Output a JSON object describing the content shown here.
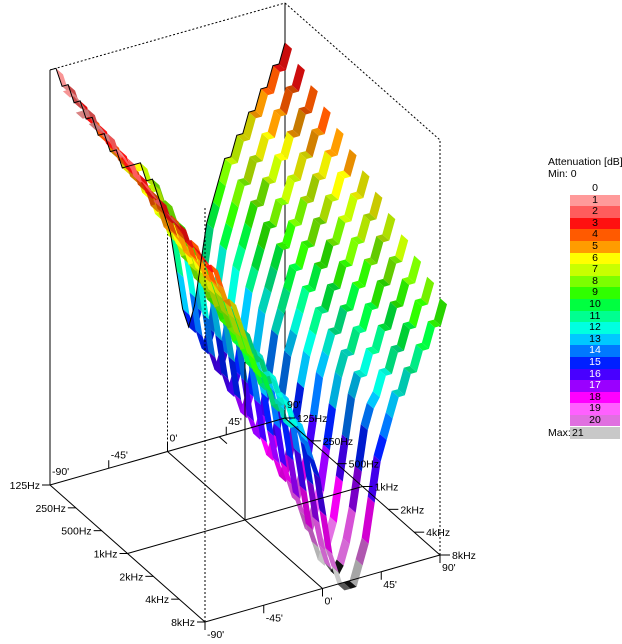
{
  "chart_data": {
    "type": "surface3d",
    "title": "",
    "freq_ticks": [
      "125Hz",
      "250Hz",
      "500Hz",
      "1kHz",
      "2kHz",
      "4kHz",
      "8kHz"
    ],
    "angle_ticks": [
      "-90'",
      "-45'",
      "0'",
      "45'",
      "90'"
    ],
    "angle_values": [
      -90,
      -45,
      0,
      45,
      90
    ],
    "legend": {
      "title": "Attenuation [dB]",
      "min_label": "Min:",
      "min_value": "0",
      "max_label": "Max:",
      "max_value": "21",
      "levels": [
        "0",
        "1",
        "2",
        "3",
        "4",
        "5",
        "6",
        "7",
        "8",
        "9",
        "10",
        "11",
        "12",
        "13",
        "14",
        "15",
        "16",
        "17",
        "18",
        "19",
        "20"
      ],
      "colors": [
        "#ffffff",
        "#ff9a9a",
        "#ff5c5c",
        "#ff1010",
        "#ff5a00",
        "#ff9c00",
        "#ffff00",
        "#c8ff00",
        "#7cff00",
        "#30ff00",
        "#00ff40",
        "#00ff90",
        "#00ffe0",
        "#00c8ff",
        "#0078ff",
        "#0020ff",
        "#4800ff",
        "#9a00ff",
        "#ff00ff",
        "#ff60ff",
        "#e070e0"
      ],
      "over_color": "#c8c8c8"
    },
    "surface_rows": [
      {
        "freq": "125Hz",
        "values": [
          0,
          0,
          1,
          1,
          2,
          2,
          3,
          3,
          4,
          4,
          5,
          5,
          6,
          6,
          6,
          6,
          7,
          7,
          8,
          9,
          10,
          12,
          14,
          15,
          14,
          12,
          10,
          9,
          8,
          7,
          7,
          6,
          6,
          5,
          5,
          4,
          4,
          3,
          3,
          2
        ]
      },
      {
        "freq": "250Hz",
        "values": [
          1,
          1,
          1,
          2,
          2,
          3,
          3,
          4,
          4,
          5,
          5,
          6,
          6,
          7,
          7,
          7,
          8,
          8,
          9,
          10,
          11,
          13,
          15,
          16,
          15,
          13,
          11,
          10,
          9,
          8,
          8,
          7,
          7,
          6,
          6,
          5,
          5,
          4,
          4,
          3
        ]
      },
      {
        "freq": "500Hz",
        "values": [
          1,
          1,
          2,
          2,
          3,
          3,
          4,
          4,
          5,
          5,
          6,
          7,
          7,
          8,
          8,
          8,
          9,
          9,
          10,
          11,
          12,
          14,
          16,
          17,
          16,
          14,
          12,
          11,
          10,
          9,
          9,
          8,
          8,
          7,
          7,
          6,
          6,
          5,
          5,
          4
        ]
      },
      {
        "freq": "1kHz",
        "values": [
          1,
          2,
          2,
          3,
          3,
          4,
          5,
          5,
          6,
          6,
          7,
          8,
          8,
          9,
          9,
          9,
          10,
          10,
          11,
          12,
          13,
          15,
          17,
          18,
          17,
          15,
          13,
          12,
          11,
          10,
          10,
          9,
          9,
          8,
          8,
          7,
          7,
          6,
          6,
          5
        ]
      },
      {
        "freq": "2kHz",
        "values": [
          2,
          2,
          3,
          3,
          4,
          5,
          5,
          6,
          7,
          7,
          8,
          9,
          9,
          10,
          10,
          10,
          11,
          11,
          12,
          13,
          15,
          17,
          18,
          19,
          18,
          17,
          15,
          13,
          12,
          11,
          11,
          10,
          10,
          9,
          9,
          8,
          8,
          7,
          7,
          6
        ]
      },
      {
        "freq": "4kHz",
        "values": [
          2,
          3,
          3,
          4,
          5,
          5,
          6,
          7,
          8,
          8,
          9,
          10,
          10,
          11,
          11,
          11,
          12,
          12,
          13,
          15,
          17,
          19,
          20,
          21,
          20,
          19,
          17,
          15,
          13,
          12,
          12,
          11,
          11,
          10,
          10,
          9,
          9,
          8,
          8,
          7
        ]
      },
      {
        "freq": "8kHz",
        "values": [
          3,
          3,
          4,
          5,
          5,
          6,
          7,
          8,
          9,
          9,
          10,
          11,
          11,
          12,
          12,
          12,
          13,
          14,
          15,
          17,
          19,
          20,
          21,
          21,
          21,
          20,
          19,
          17,
          15,
          14,
          13,
          12,
          12,
          11,
          11,
          10,
          10,
          9,
          9,
          8
        ]
      }
    ]
  }
}
